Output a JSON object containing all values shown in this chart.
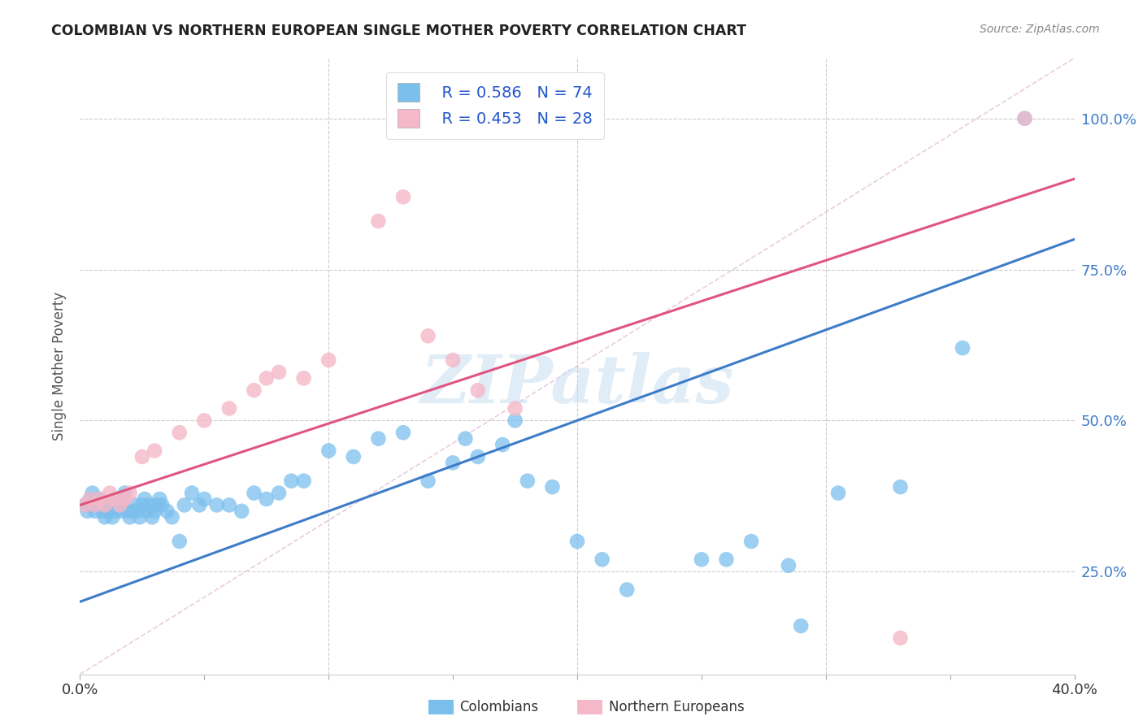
{
  "title": "COLOMBIAN VS NORTHERN EUROPEAN SINGLE MOTHER POVERTY CORRELATION CHART",
  "source": "Source: ZipAtlas.com",
  "ylabel": "Single Mother Poverty",
  "ytick_labels": [
    "25.0%",
    "50.0%",
    "75.0%",
    "100.0%"
  ],
  "ytick_values": [
    0.25,
    0.5,
    0.75,
    1.0
  ],
  "xlim": [
    0.0,
    0.4
  ],
  "ylim": [
    0.08,
    1.1
  ],
  "blue_color": "#7bbfed",
  "pink_color": "#f5b8c8",
  "blue_line_color": "#3d7cc9",
  "pink_line_color": "#e05580",
  "legend_r_blue": "R = 0.586",
  "legend_n_blue": "N = 74",
  "legend_r_pink": "R = 0.453",
  "legend_n_pink": "N = 28",
  "legend_label_blue": "Colombians",
  "legend_label_pink": "Northern Europeans",
  "watermark_text": "ZIPatlas",
  "blue_line_x0": 0.0,
  "blue_line_y0": 0.2,
  "blue_line_x1": 0.4,
  "blue_line_y1": 0.8,
  "pink_line_x0": 0.0,
  "pink_line_y0": 0.36,
  "pink_line_x1": 0.4,
  "pink_line_y1": 0.9,
  "blue_x": [
    0.002,
    0.003,
    0.004,
    0.005,
    0.005,
    0.006,
    0.007,
    0.008,
    0.009,
    0.01,
    0.01,
    0.011,
    0.012,
    0.013,
    0.014,
    0.015,
    0.016,
    0.016,
    0.017,
    0.018,
    0.019,
    0.02,
    0.021,
    0.022,
    0.023,
    0.024,
    0.025,
    0.026,
    0.027,
    0.028,
    0.029,
    0.03,
    0.031,
    0.032,
    0.033,
    0.035,
    0.037,
    0.04,
    0.042,
    0.045,
    0.048,
    0.05,
    0.055,
    0.06,
    0.065,
    0.07,
    0.075,
    0.08,
    0.085,
    0.09,
    0.1,
    0.11,
    0.12,
    0.13,
    0.14,
    0.15,
    0.155,
    0.16,
    0.17,
    0.175,
    0.18,
    0.19,
    0.2,
    0.21,
    0.22,
    0.25,
    0.26,
    0.27,
    0.285,
    0.29,
    0.305,
    0.33,
    0.355,
    0.38
  ],
  "blue_y": [
    0.36,
    0.35,
    0.37,
    0.36,
    0.38,
    0.35,
    0.36,
    0.37,
    0.35,
    0.36,
    0.34,
    0.35,
    0.36,
    0.34,
    0.35,
    0.36,
    0.37,
    0.35,
    0.36,
    0.38,
    0.35,
    0.34,
    0.35,
    0.36,
    0.35,
    0.34,
    0.36,
    0.37,
    0.35,
    0.36,
    0.34,
    0.35,
    0.36,
    0.37,
    0.36,
    0.35,
    0.34,
    0.3,
    0.36,
    0.38,
    0.36,
    0.37,
    0.36,
    0.36,
    0.35,
    0.38,
    0.37,
    0.38,
    0.4,
    0.4,
    0.45,
    0.44,
    0.47,
    0.48,
    0.4,
    0.43,
    0.47,
    0.44,
    0.46,
    0.5,
    0.4,
    0.39,
    0.3,
    0.27,
    0.22,
    0.27,
    0.27,
    0.3,
    0.26,
    0.16,
    0.38,
    0.39,
    0.62,
    1.0
  ],
  "pink_x": [
    0.002,
    0.004,
    0.006,
    0.008,
    0.01,
    0.012,
    0.014,
    0.016,
    0.018,
    0.02,
    0.025,
    0.03,
    0.04,
    0.05,
    0.06,
    0.07,
    0.075,
    0.08,
    0.09,
    0.1,
    0.12,
    0.13,
    0.14,
    0.15,
    0.16,
    0.175,
    0.33,
    0.38
  ],
  "pink_y": [
    0.36,
    0.37,
    0.36,
    0.37,
    0.36,
    0.38,
    0.37,
    0.36,
    0.37,
    0.38,
    0.44,
    0.45,
    0.48,
    0.5,
    0.52,
    0.55,
    0.57,
    0.58,
    0.57,
    0.6,
    0.83,
    0.87,
    0.64,
    0.6,
    0.55,
    0.52,
    0.14,
    1.0
  ]
}
